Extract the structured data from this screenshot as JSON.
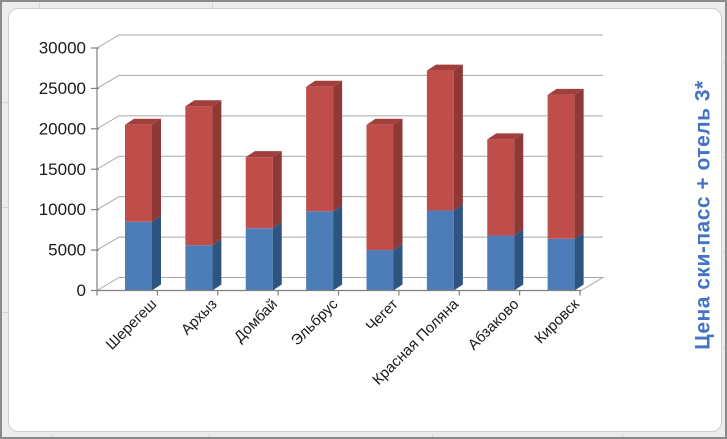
{
  "axis_title": {
    "text": "Цена ски-пасс + отель 3*",
    "color": "#4472C4"
  },
  "chart_data": {
    "type": "bar",
    "variant": "3d-stacked-column",
    "title": "",
    "legend": "none",
    "grid": true,
    "gridline_color": "#A8A8A8",
    "axis_color": "#808080",
    "label_color": "#1a1a1a",
    "categories": [
      "Шерегеш",
      "Архыз",
      "Домбай",
      "Эльбрус",
      "Чегет",
      "Красная Поляна",
      "Абзаково",
      "Кировск"
    ],
    "series": [
      {
        "name": "bottom-blue-segment",
        "color": "#4C7DB8",
        "side_color": "#2E5482",
        "values": [
          8500,
          5600,
          7700,
          9800,
          5000,
          9900,
          6800,
          6400
        ]
      },
      {
        "name": "top-red-segment",
        "color": "#BF4E4B",
        "side_color": "#8E3936",
        "top_color": "#A23F3C",
        "values": [
          12000,
          17200,
          8800,
          15400,
          15500,
          17300,
          11900,
          17800
        ]
      }
    ],
    "totals": [
      20500,
      22800,
      16500,
      25200,
      20500,
      27200,
      18700,
      24200
    ],
    "y_axis": {
      "min": 0,
      "max": 30000,
      "step": 5000,
      "tick_labels": [
        "0",
        "5000",
        "10000",
        "15000",
        "20000",
        "25000",
        "30000"
      ]
    },
    "right_axis_title": "Цена ски-пасс + отель 3*"
  }
}
